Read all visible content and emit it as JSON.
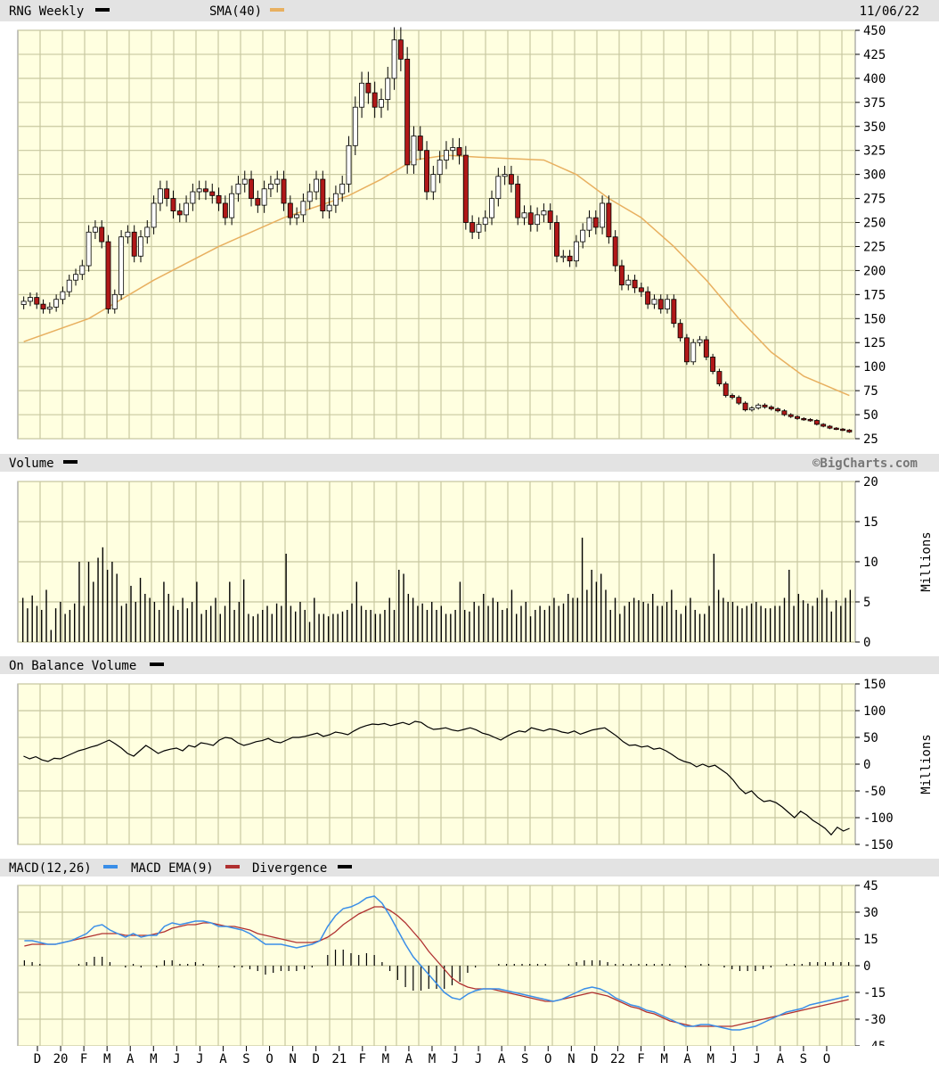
{
  "header": {
    "symbol_label": "RNG Weekly",
    "sma_label": "SMA(40)",
    "date": "11/06/22"
  },
  "volume_header": {
    "label": "Volume",
    "watermark": "©BigCharts.com"
  },
  "obv_header": {
    "label": "On Balance Volume"
  },
  "macd_header": {
    "macd_label": "MACD(12,26)",
    "ema_label": "MACD EMA(9)",
    "div_label": "Divergence"
  },
  "colors": {
    "plot_bg": "#ffffe0",
    "grid": "#c8c8a0",
    "band": "#e3e3e3",
    "up_candle": "#ffffff",
    "down_candle": "#b01818",
    "sma": "#e8b060",
    "macd": "#3a8ee8",
    "ema": "#b03030",
    "line": "#000000"
  },
  "chart_data": [
    {
      "type": "candlestick",
      "name": "RNG Weekly",
      "y_ticks": [
        450,
        425,
        400,
        375,
        350,
        325,
        300,
        275,
        250,
        225,
        200,
        175,
        150,
        125,
        100,
        75,
        50,
        25
      ],
      "ylim": [
        25,
        450
      ],
      "x_tick_labels": [
        "D",
        "20",
        "F",
        "M",
        "A",
        "M",
        "J",
        "J",
        "A",
        "S",
        "O",
        "N",
        "D",
        "21",
        "F",
        "M",
        "A",
        "M",
        "J",
        "J",
        "A",
        "S",
        "O",
        "N",
        "D",
        "22",
        "F",
        "M",
        "A",
        "M",
        "J",
        "J",
        "A",
        "S",
        "O"
      ],
      "close": [
        168,
        172,
        165,
        160,
        162,
        170,
        178,
        190,
        196,
        205,
        240,
        245,
        230,
        160,
        175,
        235,
        240,
        215,
        235,
        245,
        270,
        285,
        275,
        262,
        258,
        270,
        282,
        285,
        282,
        278,
        270,
        255,
        280,
        290,
        295,
        275,
        268,
        285,
        290,
        295,
        270,
        255,
        258,
        272,
        282,
        295,
        262,
        268,
        280,
        290,
        330,
        370,
        395,
        385,
        370,
        378,
        400,
        440,
        420,
        310,
        340,
        325,
        282,
        300,
        315,
        325,
        328,
        320,
        250,
        240,
        248,
        255,
        275,
        298,
        300,
        290,
        255,
        260,
        248,
        258,
        262,
        250,
        215,
        215,
        210,
        230,
        242,
        255,
        245,
        270,
        235,
        205,
        185,
        190,
        182,
        178,
        165,
        170,
        160,
        170,
        145,
        130,
        105,
        125,
        128,
        110,
        95,
        82,
        70,
        68,
        62,
        55,
        57,
        60,
        58,
        56,
        54,
        50,
        48,
        46,
        45,
        44,
        40,
        38,
        36,
        35,
        34,
        32
      ]
    },
    {
      "type": "line",
      "name": "SMA(40)",
      "x_index": [
        0,
        10,
        20,
        30,
        40,
        50,
        55,
        60,
        65,
        70,
        80,
        85,
        90,
        95,
        100,
        105,
        110,
        115,
        120,
        127
      ],
      "values": [
        126,
        150,
        190,
        225,
        255,
        278,
        295,
        315,
        320,
        318,
        315,
        300,
        275,
        255,
        225,
        190,
        150,
        115,
        90,
        70
      ]
    },
    {
      "type": "bar",
      "name": "Volume",
      "unit": "Millions",
      "y_ticks": [
        20,
        15,
        10,
        5,
        0
      ],
      "ylim": [
        0,
        20
      ],
      "values": [
        5.5,
        4.2,
        5.8,
        4.5,
        4.0,
        6.5,
        1.5,
        4.2,
        5.0,
        3.5,
        4.0,
        4.8,
        10.0,
        4.5,
        10.0,
        7.5,
        10.5,
        11.8,
        9.0,
        10.0,
        8.5,
        4.5,
        4.8,
        7.0,
        5.0,
        8.0,
        6.0,
        5.5,
        5.0,
        4.0,
        7.5,
        6.0,
        4.5,
        4.0,
        5.5,
        4.2,
        5.0,
        7.5,
        3.5,
        4.0,
        4.5,
        5.5,
        3.5,
        4.5,
        7.5,
        4.0,
        5.0,
        7.8,
        3.5,
        3.2,
        3.5,
        4.0,
        4.5,
        3.5,
        4.8,
        4.5,
        11.0,
        4.5,
        3.8,
        5.0,
        4.0,
        2.5,
        5.5,
        3.5,
        3.5,
        3.2,
        3.5,
        3.5,
        3.8,
        4.0,
        4.8,
        7.5,
        4.5,
        4.0,
        4.0,
        3.5,
        3.5,
        4.0,
        5.5,
        4.0,
        9.0,
        8.5,
        6.0,
        5.5,
        4.5,
        4.8,
        4.0,
        5.0,
        4.0,
        4.5,
        3.5,
        3.5,
        4.0,
        7.5,
        4.0,
        3.8,
        5.0,
        4.5,
        6.0,
        4.5,
        5.5,
        5.0,
        4.0,
        4.2,
        6.5,
        3.5,
        4.5,
        5.0,
        3.2,
        4.0,
        4.5,
        4.0,
        4.5,
        5.5,
        4.5,
        4.8,
        6.0,
        5.5,
        5.5,
        13.0,
        6.5,
        9.0,
        7.5,
        8.5,
        6.5,
        4.0,
        5.5,
        3.5,
        4.5,
        5.0,
        5.5,
        5.2,
        5.0,
        4.8,
        6.0,
        4.5,
        4.5,
        5.0,
        6.5,
        4.0,
        3.5,
        4.5,
        5.5,
        4.0,
        3.5,
        3.5,
        4.5,
        11.0,
        6.5,
        5.5,
        5.0,
        5.0,
        4.5,
        4.2,
        4.5,
        4.8,
        5.0,
        4.5,
        4.2,
        4.2,
        4.5,
        4.5,
        5.5,
        9.0,
        4.5,
        6.0,
        5.2,
        4.8,
        4.5,
        5.5,
        6.5,
        5.5,
        3.8,
        5.2,
        4.5,
        5.5,
        6.5
      ]
    },
    {
      "type": "line",
      "name": "On Balance Volume",
      "unit": "Millions",
      "y_ticks": [
        150,
        100,
        50,
        0,
        -50,
        -100,
        -150
      ],
      "ylim": [
        -150,
        150
      ],
      "values": [
        15,
        10,
        14,
        8,
        5,
        11,
        10,
        15,
        20,
        25,
        28,
        32,
        35,
        40,
        45,
        38,
        30,
        20,
        15,
        25,
        35,
        28,
        20,
        25,
        28,
        30,
        25,
        35,
        32,
        40,
        38,
        35,
        45,
        50,
        48,
        40,
        35,
        38,
        42,
        44,
        48,
        42,
        40,
        45,
        50,
        50,
        52,
        55,
        58,
        52,
        55,
        60,
        58,
        55,
        62,
        68,
        72,
        75,
        74,
        76,
        72,
        75,
        78,
        74,
        80,
        78,
        70,
        65,
        66,
        68,
        64,
        62,
        65,
        68,
        64,
        58,
        55,
        50,
        45,
        52,
        58,
        62,
        60,
        68,
        65,
        62,
        66,
        64,
        60,
        58,
        62,
        56,
        60,
        64,
        66,
        68,
        60,
        52,
        42,
        35,
        36,
        32,
        34,
        28,
        30,
        25,
        18,
        10,
        5,
        2,
        -5,
        0,
        -5,
        -2,
        -10,
        -18,
        -30,
        -45,
        -55,
        -50,
        -62,
        -70,
        -68,
        -72,
        -80,
        -90,
        -100,
        -88,
        -95,
        -105,
        -112,
        -120,
        -132,
        -118,
        -125,
        -120
      ]
    },
    {
      "type": "line",
      "name": "MACD(12,26)",
      "y_ticks": [
        45,
        30,
        15,
        0,
        -15,
        -30,
        -45
      ],
      "ylim": [
        -45,
        45
      ],
      "series": [
        {
          "name": "MACD(12,26)",
          "values": [
            14,
            14,
            13,
            12,
            12,
            13,
            14,
            16,
            18,
            22,
            23,
            20,
            18,
            16,
            18,
            16,
            17,
            17,
            22,
            24,
            23,
            24,
            25,
            25,
            24,
            22,
            22,
            21,
            20,
            18,
            15,
            12,
            12,
            12,
            11,
            10,
            11,
            12,
            14,
            22,
            28,
            32,
            33,
            35,
            38,
            39,
            35,
            28,
            20,
            12,
            5,
            0,
            -5,
            -10,
            -15,
            -18,
            -19,
            -16,
            -14,
            -13,
            -13,
            -13,
            -14,
            -15,
            -16,
            -17,
            -18,
            -19,
            -20,
            -19,
            -17,
            -15,
            -13,
            -12,
            -13,
            -15,
            -18,
            -20,
            -22,
            -23,
            -25,
            -26,
            -28,
            -30,
            -32,
            -34,
            -34,
            -33,
            -33,
            -34,
            -35,
            -36,
            -36,
            -35,
            -34,
            -32,
            -30,
            -28,
            -26,
            -25,
            -24,
            -22,
            -21,
            -20,
            -19,
            -18,
            -17,
            -16
          ]
        },
        {
          "name": "MACD EMA(9)",
          "values": [
            11,
            12,
            12,
            12,
            12,
            13,
            14,
            15,
            16,
            17,
            18,
            18,
            18,
            17,
            17,
            17,
            17,
            18,
            19,
            21,
            22,
            23,
            23,
            24,
            24,
            23,
            22,
            22,
            21,
            20,
            18,
            17,
            16,
            15,
            14,
            13,
            13,
            13,
            14,
            16,
            19,
            23,
            26,
            29,
            31,
            33,
            33,
            31,
            28,
            24,
            19,
            14,
            8,
            3,
            -2,
            -7,
            -10,
            -12,
            -13,
            -13,
            -13,
            -14,
            -15,
            -16,
            -17,
            -18,
            -19,
            -20,
            -20,
            -19,
            -18,
            -17,
            -16,
            -15,
            -16,
            -17,
            -19,
            -21,
            -23,
            -24,
            -26,
            -27,
            -29,
            -31,
            -32,
            -33,
            -34,
            -34,
            -34,
            -34,
            -34,
            -34,
            -33,
            -32,
            -31,
            -30,
            -29,
            -28,
            -27,
            -26,
            -25,
            -24,
            -23,
            -22,
            -21,
            -20,
            -19
          ]
        }
      ]
    }
  ]
}
